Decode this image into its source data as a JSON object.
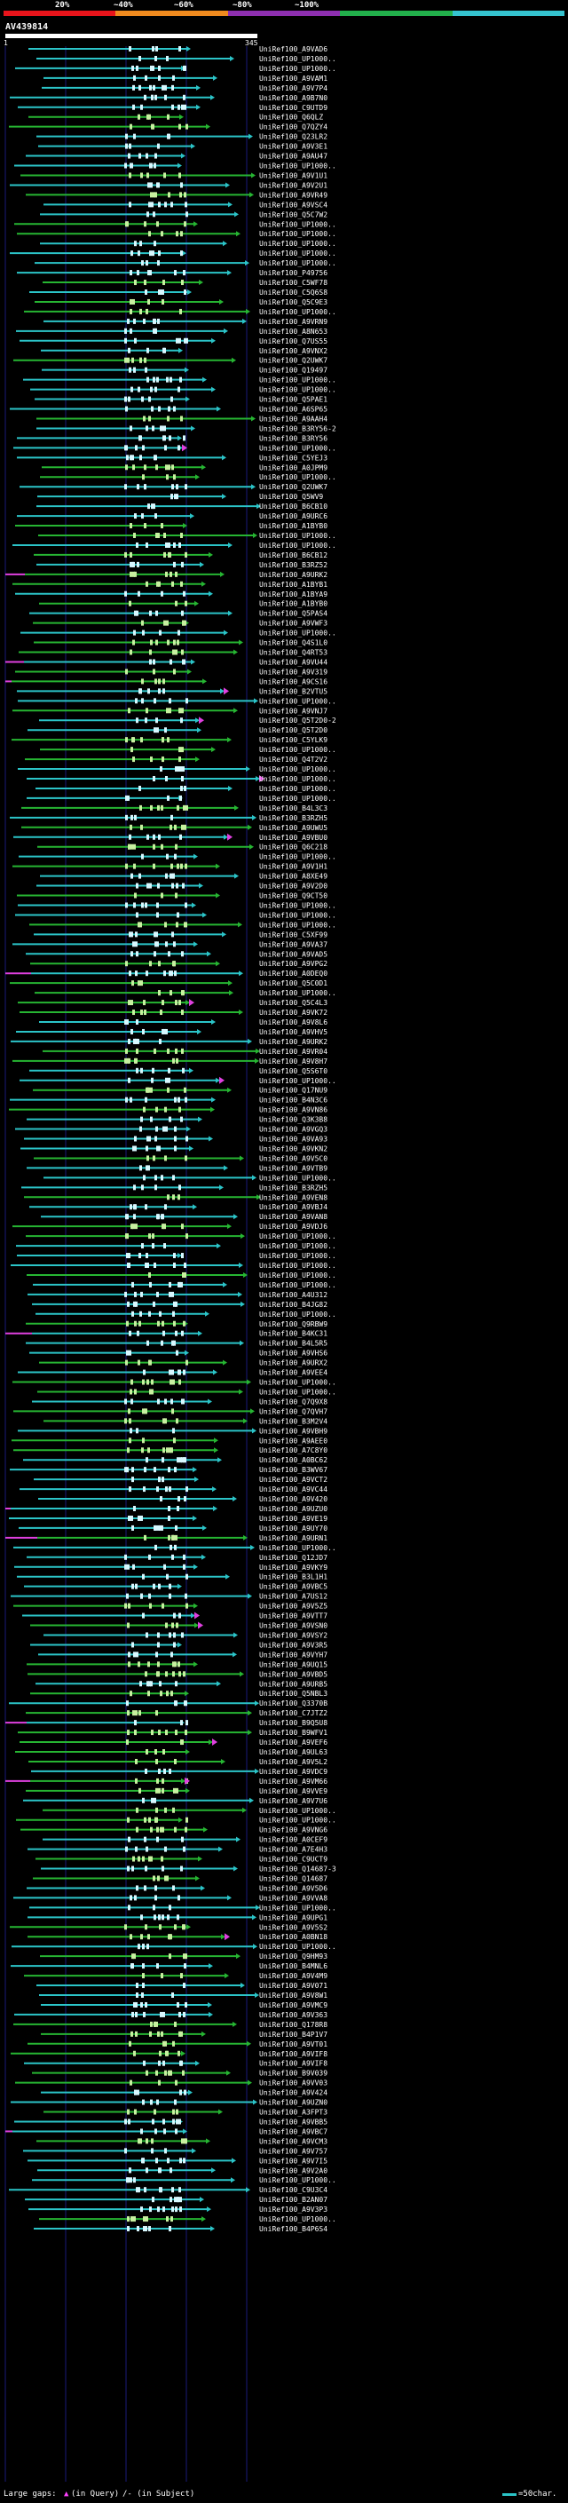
{
  "header": {
    "scale_labels": [
      "20%",
      "~40%",
      "~60%",
      "~80%",
      "~100%"
    ],
    "scale_colors": [
      "#e8141b",
      "#f08a1e",
      "#8e2fb0",
      "#22b04b",
      "#35c3cf"
    ],
    "query_name": "AV439814",
    "ruler_start": "1",
    "ruler_end": "345"
  },
  "hits": [
    "UniRef100_A9VAD6",
    "UniRef100_UP1000..",
    "UniRef100_UP1000..",
    "UniRef100_A9VAM1",
    "UniRef100_A9V7P4",
    "UniRef100_A9B7N0",
    "UniRef100_C9UTD9",
    "UniRef100_Q6QLZ",
    "UniRef100_Q7QZY4",
    "UniRef100_Q23LR2",
    "UniRef100_A9V3E1",
    "UniRef100_A9AU47",
    "UniRef100_UP1000..",
    "UniRef100_A9V1U1",
    "UniRef100_A9V2U1",
    "UniRef100_A9VR49",
    "UniRef100_A9VSC4",
    "UniRef100_Q5C7W2",
    "UniRef100_UP1000..",
    "UniRef100_UP1000..",
    "UniRef100_UP1000..",
    "UniRef100_UP1000..",
    "UniRef100_UP1000..",
    "UniRef100_P49756",
    "UniRef100_C5WF78",
    "UniRef100_C5Q6S8",
    "UniRef100_Q5C9E3",
    "UniRef100_UP1000..",
    "UniRef100_A9VRN9",
    "UniRef100_A8N653",
    "UniRef100_Q7US55",
    "UniRef100_A9VNX2",
    "UniRef100_Q2UWK7",
    "UniRef100_Q19497",
    "UniRef100_UP1000..",
    "UniRef100_UP1000..",
    "UniRef100_Q5PAE1",
    "UniRef100_A6SP65",
    "UniRef100_A9AAH4",
    "UniRef100_B3RY56-2",
    "UniRef100_B3RY56",
    "UniRef100_UP1000..",
    "UniRef100_C5YEJ3",
    "UniRef100_A0JPM9",
    "UniRef100_UP1000..",
    "UniRef100_Q2UWK7",
    "UniRef100_Q5WV9",
    "UniRef100_B6CB10",
    "UniRef100_A9URC6",
    "UniRef100_A1BYB0",
    "UniRef100_UP1000..",
    "UniRef100_UP1000..",
    "UniRef100_B6CB12",
    "UniRef100_B3RZ52",
    "UniRef100_A9URK2",
    "UniRef100_A1BYB1",
    "UniRef100_A1BYA9",
    "UniRef100_A1BYB0",
    "UniRef100_Q5PAS4",
    "UniRef100_A9VWF3",
    "UniRef100_UP1000..",
    "UniRef100_Q4S1L0",
    "UniRef100_Q4RT53",
    "UniRef100_A9VU44",
    "UniRef100_A9V319",
    "UniRef100_A9CS16",
    "UniRef100_B2VTU5",
    "UniRef100_UP1000..",
    "UniRef100_A9VNJ7",
    "UniRef100_Q5T2D0-2",
    "UniRef100_Q5T2D0",
    "UniRef100_C5YLK9",
    "UniRef100_UP1000..",
    "UniRef100_Q4T2V2",
    "UniRef100_UP1000..",
    "UniRef100_UP1000..",
    "UniRef100_UP1000..",
    "UniRef100_UP1000..",
    "UniRef100_B4L3C3",
    "UniRef100_B3RZH5",
    "UniRef100_A9UWU5",
    "UniRef100_A9VBU0",
    "UniRef100_Q6C218",
    "UniRef100_UP1000..",
    "UniRef100_A9V1H1",
    "UniRef100_A8XE49",
    "UniRef100_A9V2D0",
    "UniRef100_Q9CT50",
    "UniRef100_UP1000..",
    "UniRef100_UP1000..",
    "UniRef100_UP1000..",
    "UniRef100_C5XF99",
    "UniRef100_A9VA37",
    "UniRef100_A9VAD5",
    "UniRef100_A9VPG2",
    "UniRef100_A0DEQ0",
    "UniRef100_Q5C0D1",
    "UniRef100_UP1000..",
    "UniRef100_Q5C4L3",
    "UniRef100_A9VK72",
    "UniRef100_A9V8L6",
    "UniRef100_A9VHV5",
    "UniRef100_A9URK2",
    "UniRef100_A9VR04",
    "UniRef100_A9V8H7",
    "UniRef100_Q5S6T0",
    "UniRef100_UP1000..",
    "UniRef100_Q17NU9",
    "UniRef100_B4N3C6",
    "UniRef100_A9VN86",
    "UniRef100_Q3K3B8",
    "UniRef100_A9VGQ3",
    "UniRef100_A9VA93",
    "UniRef100_A9VKN2",
    "UniRef100_A9V5C0",
    "UniRef100_A9VTB9",
    "UniRef100_UP1000..",
    "UniRef100_B3RZH5",
    "UniRef100_A9VEN8",
    "UniRef100_A9VBJ4",
    "UniRef100_A9VAN8",
    "UniRef100_A9VDJ6",
    "UniRef100_UP1000..",
    "UniRef100_UP1000..",
    "UniRef100_UP1000..",
    "UniRef100_UP1000..",
    "UniRef100_UP1000..",
    "UniRef100_UP1000..",
    "UniRef100_A4U312",
    "UniRef100_B4JG82",
    "UniRef100_UP1000..",
    "UniRef100_Q9RBW9",
    "UniRef100_B4KC31",
    "UniRef100_B4L5R5",
    "UniRef100_A9VHS6",
    "UniRef100_A9URX2",
    "UniRef100_A9VEE4",
    "UniRef100_UP1000..",
    "UniRef100_UP1000..",
    "UniRef100_Q7Q9X8",
    "UniRef100_Q7QVH7",
    "UniRef100_B3M2V4",
    "UniRef100_A9VBH9",
    "UniRef100_A9AEE0",
    "UniRef100_A7C8Y0",
    "UniRef100_A0BC62",
    "UniRef100_B3WV67",
    "UniRef100_A9VCT2",
    "UniRef100_A9VC44",
    "UniRef100_A9V420",
    "UniRef100_A9UZU0",
    "UniRef100_A9VE19",
    "UniRef100_A9UY70",
    "UniRef100_A9URN1",
    "UniRef100_UP1000..",
    "UniRef100_Q12JD7",
    "UniRef100_A9VKY9",
    "UniRef100_B3L1H1",
    "UniRef100_A9VBC5",
    "UniRef100_A7US12",
    "UniRef100_A9V5Z5",
    "UniRef100_A9VTT7",
    "UniRef100_A9VSN0",
    "UniRef100_A9VSY2",
    "UniRef100_A9V3R5",
    "UniRef100_A9VYH7",
    "UniRef100_A9UQ15",
    "UniRef100_A9VBD5",
    "UniRef100_A9URB5",
    "UniRef100_Q5NBL3",
    "UniRef100_Q3370B",
    "UniRef100_C7JTZ2",
    "UniRef100_B9Q5U8",
    "UniRef100_B9WFV1",
    "UniRef100_A9VEF6",
    "UniRef100_A9UL63",
    "UniRef100_A9V5L2",
    "UniRef100_A9VDC9",
    "UniRef100_A9VM66",
    "UniRef100_A9VVE9",
    "UniRef100_A9V7U6",
    "UniRef100_UP1000..",
    "UniRef100_UP1000..",
    "UniRef100_A9VNG6",
    "UniRef100_A0CEF9",
    "UniRef100_A7E4H3",
    "UniRef100_C9UCT9",
    "UniRef100_Q14687-3",
    "UniRef100_Q14687",
    "UniRef100_A9V5D6",
    "UniRef100_A9VVA8",
    "UniRef100_UP1000..",
    "UniRef100_A9UPG1",
    "UniRef100_A9V5S2",
    "UniRef100_A0BN18",
    "UniRef100_UP1000..",
    "UniRef100_Q9HM93",
    "UniRef100_B4MNL6",
    "UniRef100_A9V4M9",
    "UniRef100_A9V071",
    "UniRef100_A9V8W1",
    "UniRef100_A9VMC9",
    "UniRef100_A9V363",
    "UniRef100_Q178R8",
    "UniRef100_B4P1V7",
    "UniRef100_A9VT01",
    "UniRef100_A9VIF8",
    "UniRef100_A9VIF8",
    "UniRef100_B9V039",
    "UniRef100_A9VV03",
    "UniRef100_A9V424",
    "UniRef100_A9UZN0",
    "UniRef100_A3FPT3",
    "UniRef100_A9VBB5",
    "UniRef100_A9VBC7",
    "UniRef100_A9VCM3",
    "UniRef100_A9V757",
    "UniRef100_A9V7I5",
    "UniRef100_A9V2A0",
    "UniRef100_UP1000..",
    "UniRef100_C9U3C4",
    "UniRef100_B2AN07",
    "UniRef100_A9V3P3",
    "UniRef100_UP1000..",
    "UniRef100_B4P6S4"
  ],
  "legend": {
    "gaps_label": "Large gaps:",
    "in_query": "(in Query)",
    "in_subject": "/- (in Subject)",
    "scale_text": "=50char."
  }
}
